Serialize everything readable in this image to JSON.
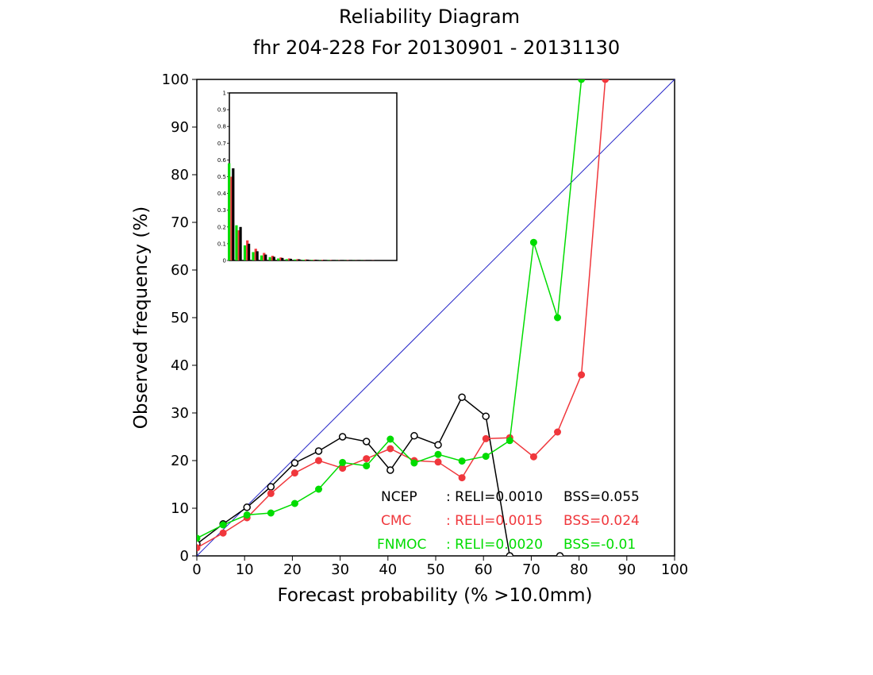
{
  "chart_data": {
    "type": "line",
    "title": "Reliability Diagram",
    "subtitle": "fhr 204-228 For 20130901 - 20131130",
    "xlabel": "Forecast probability (% >10.0mm)",
    "ylabel": "Observed frequency (%)",
    "xlim": [
      0,
      100
    ],
    "ylim": [
      0,
      100
    ],
    "xticks": [
      "0",
      "10",
      "20",
      "30",
      "40",
      "50",
      "60",
      "70",
      "80",
      "90",
      "100"
    ],
    "yticks": [
      "0",
      "10",
      "20",
      "30",
      "40",
      "50",
      "60",
      "70",
      "80",
      "90",
      "100"
    ],
    "diagonal_color": "#2323c8",
    "series": [
      {
        "name": "NCEP",
        "color": "#000000",
        "marker": "open",
        "reli_label": ": RELI=0.0010",
        "bss_label": "BSS=0.055",
        "x": [
          0,
          5.5,
          10.5,
          15.5,
          20.5,
          25.5,
          30.5,
          35.5,
          40.5,
          45.5,
          50.5,
          55.5,
          60.5,
          65.5,
          76
        ],
        "y": [
          2.5,
          6.7,
          10.2,
          14.5,
          19.5,
          22,
          25,
          24,
          18,
          25.2,
          23.3,
          33.3,
          29.3,
          0,
          0
        ]
      },
      {
        "name": "CMC",
        "color": "#f0373c",
        "marker": "filled",
        "reli_label": ": RELI=0.0015",
        "bss_label": "BSS=0.024",
        "x": [
          0,
          5.5,
          10.5,
          15.5,
          20.5,
          25.5,
          30.5,
          35.5,
          40.5,
          45.5,
          50.5,
          55.5,
          60.5,
          65.5,
          70.5,
          75.5,
          80.5,
          85.5
        ],
        "y": [
          1.7,
          4.8,
          8,
          13.1,
          17.4,
          20,
          18.4,
          20.4,
          22.5,
          20,
          19.7,
          16.4,
          24.6,
          24.8,
          20.8,
          26,
          38,
          100
        ]
      },
      {
        "name": "FNMOC",
        "color": "#00dc00",
        "marker": "filled",
        "reli_label": ": RELI=0.0020",
        "bss_label": "BSS=-0.01",
        "x": [
          0,
          5.5,
          10.5,
          15.5,
          20.5,
          25.5,
          30.5,
          35.5,
          40.5,
          45.5,
          50.5,
          55.5,
          60.5,
          65.5,
          70.5,
          75.5,
          80.5
        ],
        "y": [
          3.7,
          6.5,
          8.6,
          9,
          11,
          14,
          19.6,
          18.9,
          24.5,
          19.5,
          21.3,
          19.9,
          20.9,
          24.2,
          65.8,
          50,
          100
        ]
      }
    ],
    "inset": {
      "type": "bar",
      "ylim": [
        0,
        1
      ],
      "yticks": [
        "0",
        "0.1",
        "0.2",
        "0.3",
        "0.4",
        "0.5",
        "0.6",
        "0.7",
        "0.8",
        "0.9",
        "1"
      ],
      "bins": [
        0,
        5,
        10,
        15,
        20,
        25,
        30,
        35,
        40,
        45,
        50,
        55,
        60,
        65,
        70,
        75,
        80,
        85,
        90,
        95,
        100
      ],
      "series": [
        {
          "name": "NCEP",
          "color": "#000000",
          "values": [
            0.55,
            0.2,
            0.1,
            0.055,
            0.035,
            0.022,
            0.015,
            0.01,
            0.007,
            0.005,
            0.004,
            0.003,
            0.002,
            0.002,
            0.001,
            0.001,
            0.001,
            0,
            0,
            0,
            0
          ]
        },
        {
          "name": "CMC",
          "color": "#f0373c",
          "values": [
            0.5,
            0.18,
            0.12,
            0.07,
            0.045,
            0.028,
            0.018,
            0.012,
            0.008,
            0.006,
            0.005,
            0.004,
            0.003,
            0.002,
            0.002,
            0.001,
            0.001,
            0.001,
            0,
            0,
            0
          ]
        },
        {
          "name": "FNMOC",
          "color": "#00dc00",
          "values": [
            0.58,
            0.21,
            0.09,
            0.05,
            0.03,
            0.02,
            0.012,
            0.008,
            0.006,
            0.004,
            0.003,
            0.002,
            0.002,
            0.001,
            0.001,
            0.001,
            0.001,
            0,
            0,
            0,
            0
          ]
        }
      ]
    }
  }
}
